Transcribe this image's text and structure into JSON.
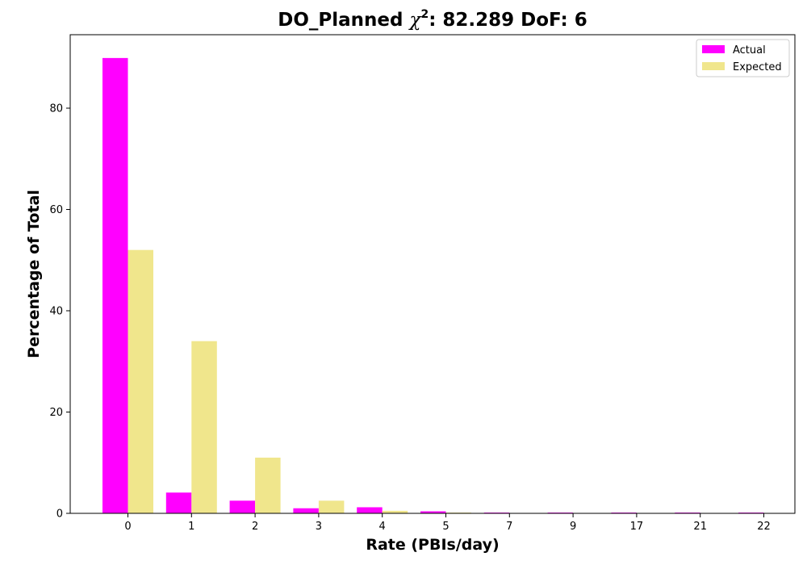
{
  "chart_data": {
    "type": "bar",
    "title_prefix": "DO_Planned ",
    "title_symbol": "χ",
    "title_superscript": "2",
    "title_suffix": ": 82.289 DoF: 6",
    "xlabel": "Rate (PBIs/day)",
    "ylabel": "Percentage of Total",
    "categories": [
      "0",
      "1",
      "2",
      "3",
      "4",
      "5",
      "7",
      "9",
      "17",
      "21",
      "22"
    ],
    "series": [
      {
        "name": "Actual",
        "color": "#ff00ff",
        "values": [
          89.9,
          4.1,
          2.5,
          1.0,
          1.2,
          0.4,
          0.15,
          0.15,
          0.15,
          0.15,
          0.15
        ]
      },
      {
        "name": "Expected",
        "color": "#f0e68c",
        "values": [
          52.0,
          34.0,
          11.0,
          2.5,
          0.5,
          0.15,
          0.0,
          0.0,
          0.0,
          0.0,
          0.0
        ]
      }
    ],
    "ylim": [
      0,
      94.5
    ],
    "yticks": [
      0,
      20,
      40,
      60,
      80
    ],
    "grid": false,
    "legend": "top-right"
  }
}
